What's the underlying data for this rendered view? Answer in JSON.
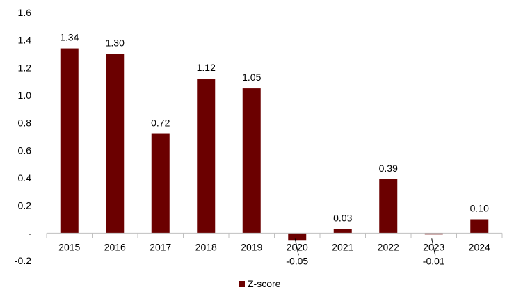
{
  "chart_data": {
    "type": "bar",
    "categories": [
      "2015",
      "2016",
      "2017",
      "2018",
      "2019",
      "2020",
      "2021",
      "2022",
      "2023",
      "2024"
    ],
    "series": [
      {
        "name": "Z-score",
        "values": [
          1.34,
          1.3,
          0.72,
          1.12,
          1.05,
          -0.05,
          0.03,
          0.39,
          -0.01,
          0.1
        ]
      }
    ],
    "data_labels": [
      "1.34",
      "1.30",
      "0.72",
      "1.12",
      "1.05",
      "-0.05",
      "0.03",
      "0.39",
      "-0.01",
      "0.10"
    ],
    "y_ticks": [
      {
        "value": 1.6,
        "label": "1.6"
      },
      {
        "value": 1.4,
        "label": "1.4"
      },
      {
        "value": 1.2,
        "label": "1.2"
      },
      {
        "value": 1.0,
        "label": "1.0"
      },
      {
        "value": 0.8,
        "label": "0.8"
      },
      {
        "value": 0.6,
        "label": "0.6"
      },
      {
        "value": 0.4,
        "label": "0.4"
      },
      {
        "value": 0.2,
        "label": "0.2"
      },
      {
        "value": 0,
        "label": "-"
      },
      {
        "value": -0.2,
        "label": "-0.2"
      }
    ],
    "ylim": [
      -0.2,
      1.6
    ],
    "grid": false,
    "legend_position": "bottom-center",
    "colors": {
      "bar": "#6b0000",
      "axis": "#c0c0c0"
    }
  }
}
